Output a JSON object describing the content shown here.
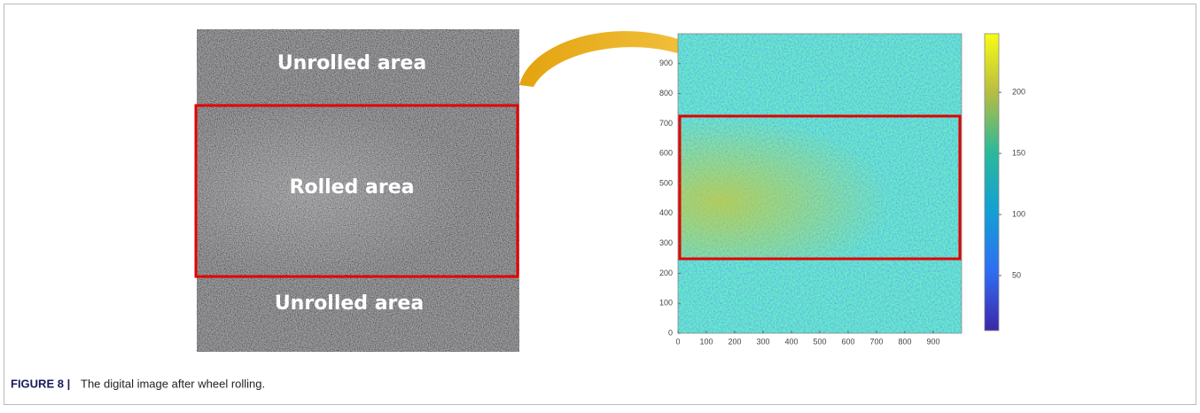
{
  "figure": {
    "label": "FIGURE 8 |",
    "caption": "The digital image after wheel rolling."
  },
  "photo": {
    "labels": [
      "Unrolled area",
      "Rolled area",
      "Unrolled area"
    ]
  },
  "heatmap": {
    "xlim": [
      0,
      1000
    ],
    "ylim": [
      0,
      1000
    ],
    "xticks": [
      0,
      100,
      200,
      300,
      400,
      500,
      600,
      700,
      800,
      900
    ],
    "yticks": [
      0,
      100,
      200,
      300,
      400,
      500,
      600,
      700,
      800,
      900
    ],
    "colorbar": {
      "lim": [
        5,
        248
      ],
      "ticks": [
        50,
        100,
        150,
        200
      ]
    }
  }
}
